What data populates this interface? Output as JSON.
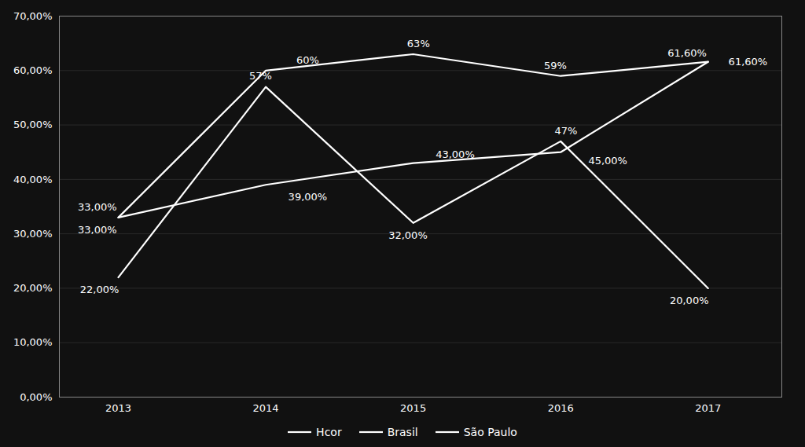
{
  "chart_data": {
    "type": "line",
    "x": [
      2013,
      2014,
      2015,
      2016,
      2017
    ],
    "series": [
      {
        "name": "Hcor",
        "color": "#ffffff",
        "values": [
          0.22,
          0.57,
          0.32,
          0.47,
          0.2
        ],
        "value_labels": [
          "22,00%",
          "57%",
          "32,00%",
          "47%",
          "20,00%"
        ]
      },
      {
        "name": "Brasil",
        "color": "#ffffff",
        "values": [
          0.33,
          0.6,
          0.63,
          0.59,
          0.616
        ],
        "value_labels": [
          "33,00%",
          "60%",
          "63%",
          "59%",
          "61,60%"
        ]
      },
      {
        "name": "São Paulo",
        "color": "#ffffff",
        "values": [
          0.33,
          0.39,
          0.43,
          0.45,
          0.616
        ],
        "value_labels": [
          "33,00%",
          "39,00%",
          "43,00%",
          "45,00%",
          "61,60%"
        ]
      }
    ],
    "xlim": [
      2012.6,
      2017.5
    ],
    "xticks": [
      2013,
      2014,
      2015,
      2016,
      2017
    ],
    "ylim": [
      0.0,
      0.7
    ],
    "yticks": [
      {
        "value": 0.0,
        "label": "0,00%"
      },
      {
        "value": 0.1,
        "label": "10,00%"
      },
      {
        "value": 0.2,
        "label": "20,00%"
      },
      {
        "value": 0.3,
        "label": "30,00%"
      },
      {
        "value": 0.4,
        "label": "40,00%"
      },
      {
        "value": 0.5,
        "label": "50,00%"
      },
      {
        "value": 0.6,
        "label": "60,00%"
      },
      {
        "value": 0.7,
        "label": "70,00%"
      }
    ],
    "grid": true,
    "legend": "bottom",
    "data_labels": true
  }
}
